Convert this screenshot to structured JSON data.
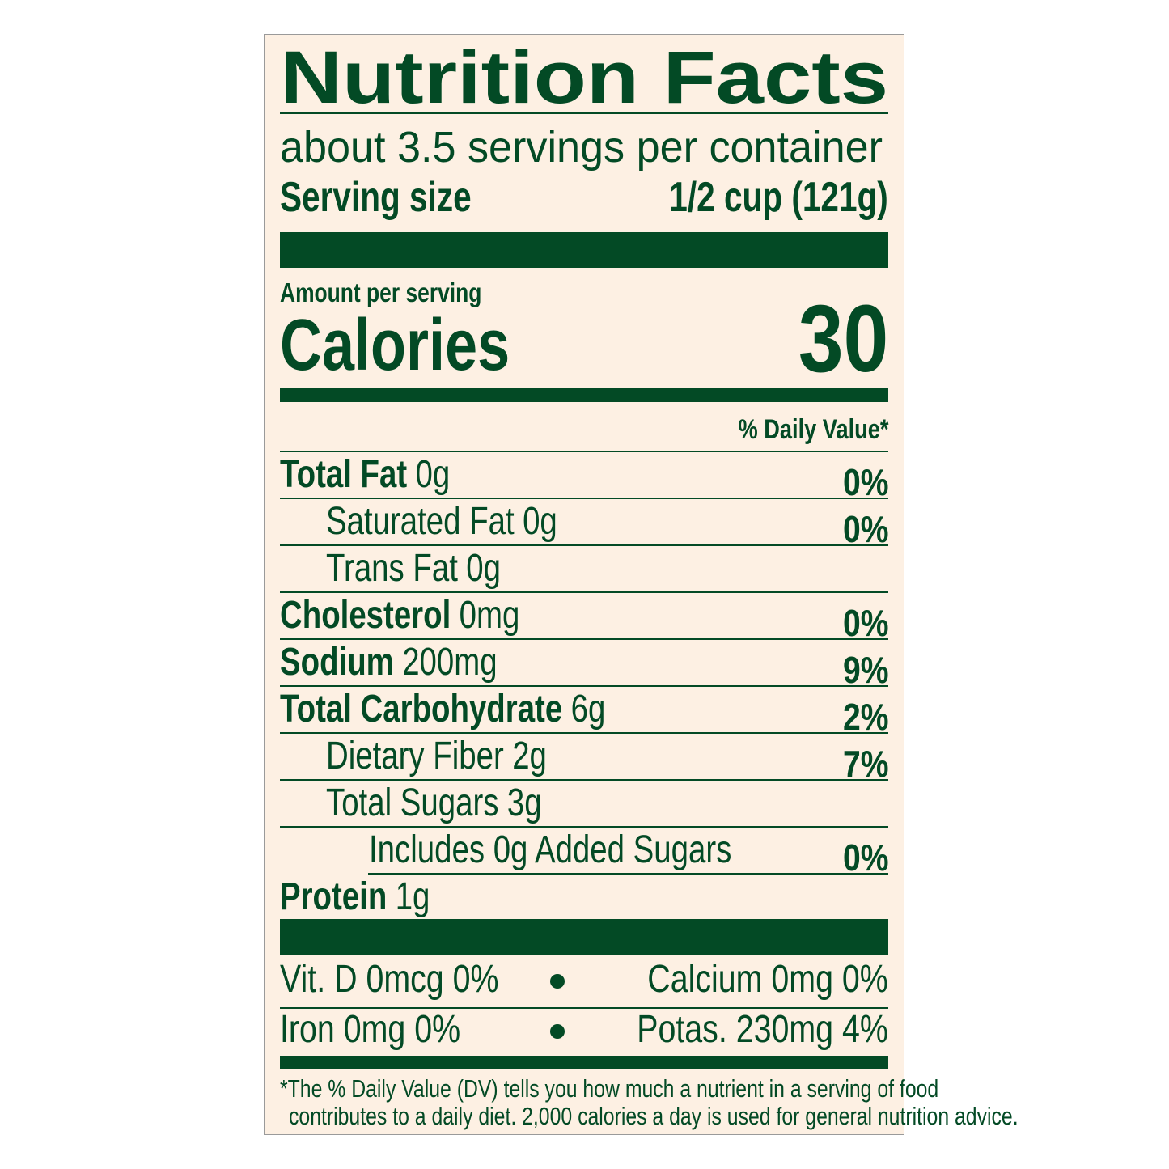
{
  "header": {
    "title": "Nutrition Facts",
    "servings": "about 3.5 servings per container",
    "serving_size_label": "Serving size",
    "serving_size_value": "1/2 cup (121g)"
  },
  "calories": {
    "amount_per_serving": "Amount per serving",
    "label": "Calories",
    "value": "30"
  },
  "daily_value_header": "% Daily Value*",
  "nutrients": [
    {
      "name": "Total Fat",
      "amount": "0g",
      "dv": "0%",
      "level": 0
    },
    {
      "name": "Saturated Fat",
      "amount": "0g",
      "dv": "0%",
      "level": 1
    },
    {
      "name": "Trans Fat",
      "amount": "0g",
      "level": 1
    },
    {
      "name": "Cholesterol",
      "amount": "0mg",
      "dv": "0%",
      "level": 0
    },
    {
      "name": "Sodium",
      "amount": "200mg",
      "dv": "9%",
      "level": 0
    },
    {
      "name": "Total Carbohydrate",
      "amount": "6g",
      "dv": "2%",
      "level": 0
    },
    {
      "name": "Dietary Fiber",
      "amount": "2g",
      "dv": "7%",
      "level": 1
    },
    {
      "name": "Total Sugars",
      "amount": "3g",
      "level": 1
    },
    {
      "name": "Includes 0g Added Sugars",
      "dv": "0%",
      "level": 2
    },
    {
      "name": "Protein",
      "amount": "1g",
      "level": 0
    }
  ],
  "vitamins": [
    [
      "Vit. D 0mcg 0%",
      "Calcium 0mg 0%"
    ],
    [
      "Iron 0mg 0%",
      "Potas. 230mg 4%"
    ]
  ],
  "footnote": [
    "*The % Daily Value (DV) tells you how much a nutrient in a serving of food",
    "contributes to a daily diet. 2,000 calories a day is used for general nutrition advice."
  ]
}
